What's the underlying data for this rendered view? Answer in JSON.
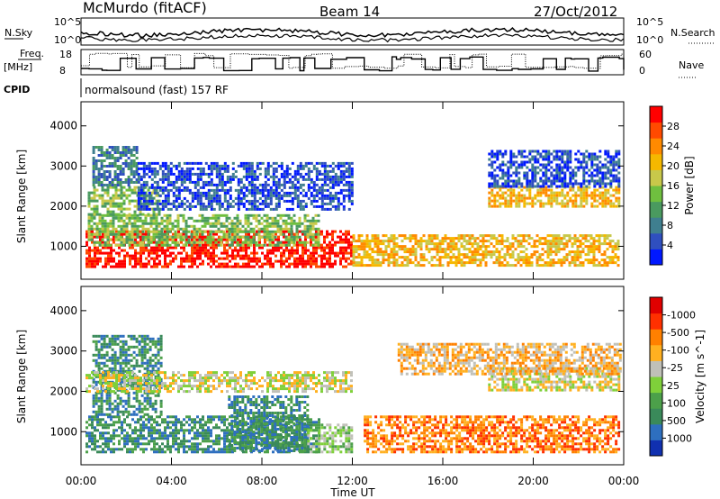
{
  "header": {
    "station": "McMurdo (fitACF)",
    "beam": "Beam 14",
    "date": "27/Oct/2012"
  },
  "top_panels": {
    "nsky_label": "N.Sky",
    "nsky_ticks": [
      "10^5",
      "10^0"
    ],
    "nsearch_label": "N.Search",
    "nsearch_ticks": [
      "10^5",
      "10^0"
    ],
    "freq_label_1": "Freq.",
    "freq_label_2": "[MHz]",
    "freq_ticks": [
      "18",
      "8"
    ],
    "nave_label": "Nave",
    "nave_ticks": [
      "60",
      "0"
    ],
    "cpid_label": "CPID",
    "cpid_text": "normalsound (fast) 157 RF"
  },
  "time_axis": {
    "ticks": [
      "00:00",
      "04:00",
      "08:00",
      "12:00",
      "16:00",
      "20:00",
      "00:00"
    ],
    "label": "Time UT"
  },
  "chart_data": [
    {
      "type": "heatmap",
      "ylabel": "Slant Range [km]",
      "yticks": [
        "1000",
        "2000",
        "3000",
        "4000"
      ],
      "ylim": [
        180,
        4600
      ],
      "xlim": [
        0,
        24
      ],
      "colorbar": {
        "label": "Power [dB]",
        "ticks": [
          "4",
          "8",
          "12",
          "16",
          "20",
          "24",
          "28"
        ],
        "colors": [
          "#0018ff",
          "#2f4fbf",
          "#3f7f8f",
          "#4a9a5f",
          "#6fbf3f",
          "#c8c84a",
          "#f5b800",
          "#ff8a00",
          "#ff4a00",
          "#ff0000"
        ]
      },
      "bands": [
        {
          "t0": 0.2,
          "t1": 12.0,
          "r0": 500,
          "r1": 1400,
          "level": 9
        },
        {
          "t0": 0.3,
          "t1": 10.5,
          "r0": 1000,
          "r1": 1800,
          "level": 4
        },
        {
          "t0": 0.3,
          "t1": 3.5,
          "r0": 1800,
          "r1": 2500,
          "level": 4
        },
        {
          "t0": 0.5,
          "t1": 2.5,
          "r0": 2500,
          "r1": 3500,
          "level": 2
        },
        {
          "t0": 2.5,
          "t1": 12.0,
          "r0": 1900,
          "r1": 3100,
          "level": 1
        },
        {
          "t0": 12.0,
          "t1": 23.8,
          "r0": 500,
          "r1": 1300,
          "level": 6
        },
        {
          "t0": 18.0,
          "t1": 23.8,
          "r0": 2000,
          "r1": 2500,
          "level": 6
        },
        {
          "t0": 18.0,
          "t1": 23.8,
          "r0": 2500,
          "r1": 3400,
          "level": 1
        }
      ]
    },
    {
      "type": "heatmap",
      "ylabel": "Slant Range [km]",
      "yticks": [
        "1000",
        "2000",
        "3000",
        "4000"
      ],
      "ylim": [
        180,
        4600
      ],
      "xlim": [
        0,
        24
      ],
      "colorbar": {
        "label": "Velocity [m s^-1]",
        "ticks": [
          "1000",
          "500",
          "100",
          "25",
          "-25",
          "-100",
          "-500",
          "-1000"
        ],
        "colors": [
          "#1030b0",
          "#2e6fbf",
          "#3a8a5a",
          "#4ca04a",
          "#7fd03a",
          "#c0c0b8",
          "#ffb020",
          "#ff8000",
          "#ff3000",
          "#e00000"
        ]
      },
      "bands": [
        {
          "t0": 0.2,
          "t1": 10.5,
          "r0": 500,
          "r1": 1400,
          "level": 2
        },
        {
          "t0": 0.5,
          "t1": 3.5,
          "r0": 1400,
          "r1": 3400,
          "level": 2
        },
        {
          "t0": 6.5,
          "t1": 10.0,
          "r0": 500,
          "r1": 1900,
          "level": 2
        },
        {
          "t0": 10.0,
          "t1": 12.0,
          "r0": 500,
          "r1": 1200,
          "level": 4
        },
        {
          "t0": 0.2,
          "t1": 12.0,
          "r0": 2000,
          "r1": 2500,
          "level": 5
        },
        {
          "t0": 12.5,
          "t1": 23.8,
          "r0": 500,
          "r1": 1400,
          "level": 7
        },
        {
          "t0": 18.0,
          "t1": 23.8,
          "r0": 2000,
          "r1": 2600,
          "level": 5
        },
        {
          "t0": 14.0,
          "t1": 23.8,
          "r0": 2400,
          "r1": 3200,
          "level": 6
        }
      ]
    }
  ]
}
